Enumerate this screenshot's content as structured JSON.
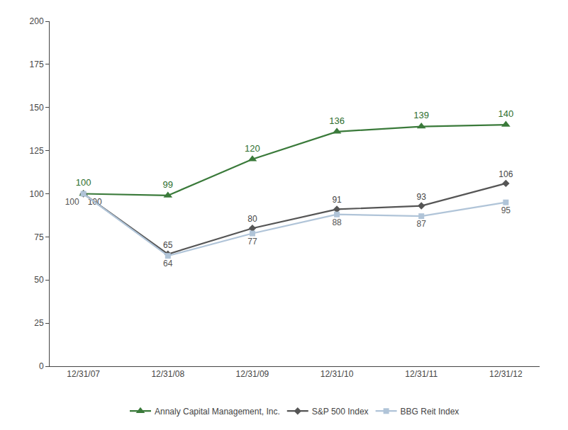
{
  "chart_data": {
    "type": "line",
    "categories": [
      "12/31/07",
      "12/31/08",
      "12/31/09",
      "12/31/10",
      "12/31/11",
      "12/31/12"
    ],
    "series": [
      {
        "name": "Annaly Capital Management, Inc.",
        "color": "#3a7a3a",
        "marker": "triangle-up",
        "values": [
          100,
          99,
          120,
          136,
          139,
          140
        ]
      },
      {
        "name": "S&P 500 Index",
        "color": "#555555",
        "marker": "diamond",
        "values": [
          100,
          65,
          80,
          91,
          93,
          106
        ]
      },
      {
        "name": "BBG Reit Index",
        "color": "#b0c4d8",
        "marker": "square",
        "values": [
          100,
          64,
          77,
          88,
          87,
          95
        ]
      }
    ],
    "ylim": [
      0,
      200
    ],
    "yticks": [
      0,
      25,
      50,
      75,
      100,
      125,
      150,
      175,
      200
    ],
    "grid": false,
    "legend": "bottom",
    "data_labels": true
  }
}
